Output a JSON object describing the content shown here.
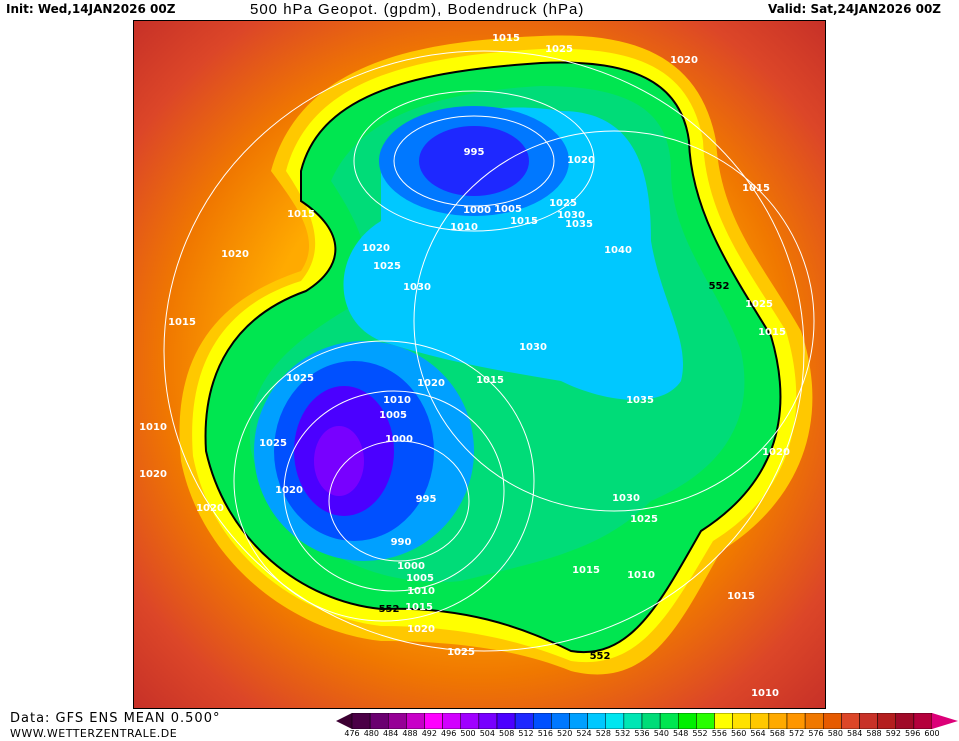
{
  "header": {
    "init": "Init: Wed,14JAN2026 00Z",
    "title": "500 hPa Geopot. (gpdm), Bodendruck (hPa)",
    "valid": "Valid: Sat,24JAN2026 00Z"
  },
  "footer": {
    "data_source": "Data: GFS ENS MEAN 0.500°",
    "website": "WWW.WETTERZENTRALE.DE"
  },
  "legend": {
    "labels": [
      "476",
      "480",
      "484",
      "488",
      "492",
      "496",
      "500",
      "504",
      "508",
      "512",
      "516",
      "520",
      "524",
      "528",
      "532",
      "536",
      "540",
      "548",
      "552",
      "556",
      "560",
      "564",
      "568",
      "572",
      "576",
      "580",
      "584",
      "588",
      "592",
      "596",
      "600"
    ],
    "colors": [
      "#4b0046",
      "#6a0070",
      "#960096",
      "#c800c8",
      "#ff00ff",
      "#d200ff",
      "#a000ff",
      "#7800ff",
      "#4b00ff",
      "#1e28ff",
      "#0050ff",
      "#0078ff",
      "#00a0ff",
      "#00c8ff",
      "#00e6f0",
      "#00e6b4",
      "#00dc78",
      "#00e650",
      "#00f000",
      "#28ff00",
      "#ffff00",
      "#ffe100",
      "#ffc800",
      "#ffaa00",
      "#ff9600",
      "#f07800",
      "#e65a00",
      "#dc4628",
      "#c83228",
      "#b41e1e",
      "#a00a28",
      "#b4003c"
    ],
    "low_arrow_color": "#3c0032",
    "high_arrow_color": "#dc0078"
  },
  "map": {
    "contour_552_label": "552",
    "pressure_labels": [
      "1015",
      "1025",
      "1020",
      "995",
      "1020",
      "1015",
      "1000",
      "1005",
      "1010",
      "1015",
      "1025",
      "1030",
      "1035",
      "1015",
      "1020",
      "1040",
      "1020",
      "1025",
      "1030",
      "552",
      "1025",
      "1015",
      "1015",
      "1030",
      "1025",
      "1020",
      "1015",
      "1010",
      "1005",
      "1000",
      "1035",
      "1010",
      "1025",
      "1020",
      "995",
      "1030",
      "1020",
      "990",
      "1025",
      "1020",
      "1000",
      "1005",
      "1010",
      "1015",
      "1015",
      "1010",
      "552",
      "1020",
      "1025",
      "1015",
      "552",
      "1010",
      "1020"
    ]
  }
}
